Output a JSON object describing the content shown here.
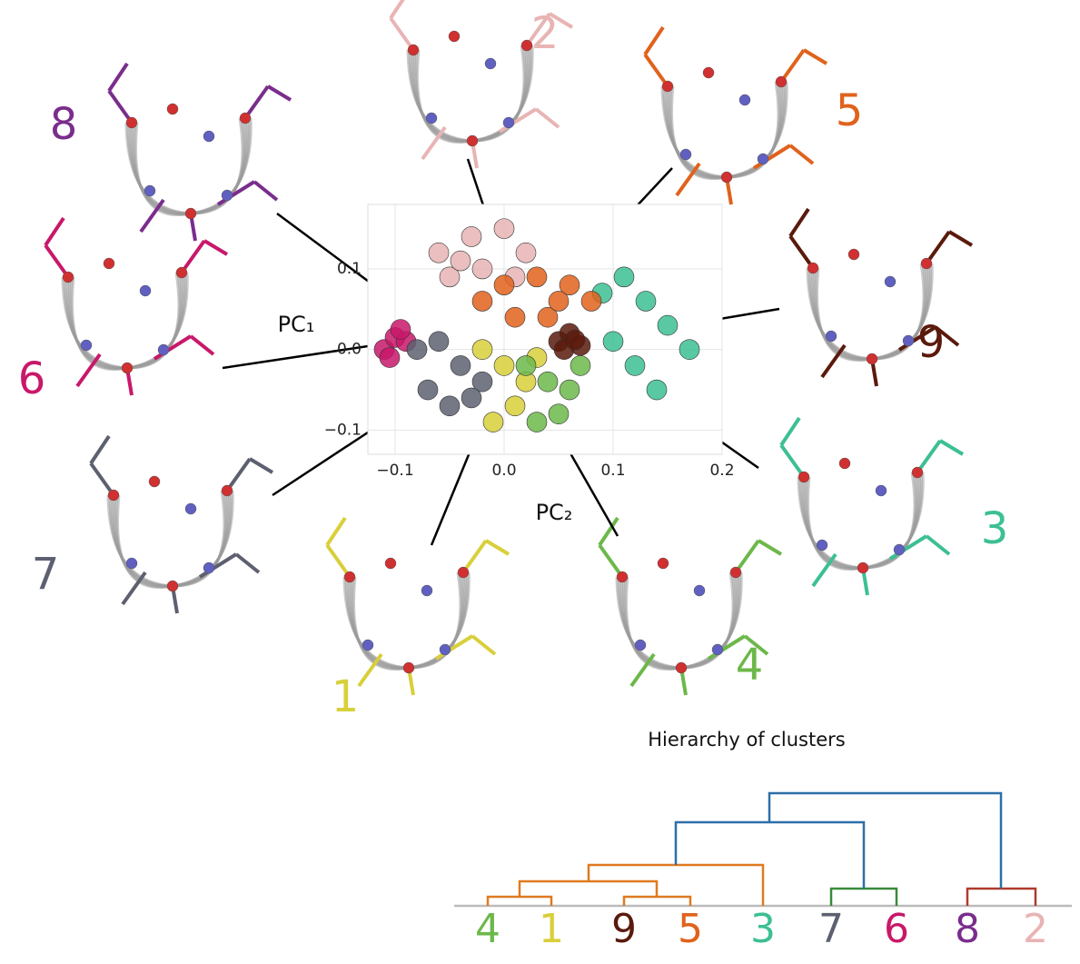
{
  "chart_data": {
    "type": "scatter",
    "xlabel": "PC₂",
    "ylabel": "PC₁",
    "xlim": [
      -0.125,
      0.2
    ],
    "ylim": [
      -0.13,
      0.18
    ],
    "xticks": [
      {
        "value": -0.1,
        "label": "−0.1"
      },
      {
        "value": 0,
        "label": "0.0"
      },
      0.1,
      0.2
    ],
    "yticks": [
      {
        "value": -0.1,
        "label": "−0.1"
      },
      {
        "value": 0,
        "label": "0.0"
      },
      0.1
    ],
    "grid": true,
    "series": [
      {
        "name": "1",
        "color": "#d8cf3a",
        "x": [
          -0.02,
          0.0,
          0.02,
          0.01,
          -0.01,
          0.03
        ],
        "y": [
          0.0,
          -0.02,
          -0.04,
          -0.07,
          -0.09,
          -0.01
        ]
      },
      {
        "name": "2",
        "color": "#e8b4b4",
        "x": [
          -0.06,
          -0.03,
          0.0,
          0.02,
          -0.02,
          -0.05,
          0.01,
          -0.04
        ],
        "y": [
          0.12,
          0.14,
          0.15,
          0.12,
          0.1,
          0.09,
          0.09,
          0.11
        ]
      },
      {
        "name": "3",
        "color": "#3cbf94",
        "x": [
          0.09,
          0.11,
          0.13,
          0.15,
          0.17,
          0.12,
          0.1,
          0.14
        ],
        "y": [
          0.07,
          0.09,
          0.06,
          0.03,
          0.0,
          -0.02,
          0.01,
          -0.05
        ]
      },
      {
        "name": "4",
        "color": "#6cb84a",
        "x": [
          0.02,
          0.04,
          0.06,
          0.05,
          0.03,
          0.07
        ],
        "y": [
          -0.02,
          -0.04,
          -0.05,
          -0.08,
          -0.09,
          -0.02
        ]
      },
      {
        "name": "5",
        "color": "#e0621c",
        "x": [
          -0.02,
          0.0,
          0.03,
          0.06,
          0.08,
          0.04,
          0.01,
          0.05
        ],
        "y": [
          0.06,
          0.08,
          0.09,
          0.08,
          0.06,
          0.04,
          0.04,
          0.06
        ]
      },
      {
        "name": "6",
        "color": "#c8186a",
        "x": [
          -0.11,
          -0.1,
          -0.09,
          -0.105,
          -0.095
        ],
        "y": [
          0.0,
          0.015,
          0.01,
          -0.01,
          0.025
        ]
      },
      {
        "name": "7",
        "color": "#5d6070",
        "x": [
          -0.08,
          -0.06,
          -0.04,
          -0.02,
          -0.07,
          -0.05,
          -0.03
        ],
        "y": [
          0.0,
          0.01,
          -0.02,
          -0.04,
          -0.05,
          -0.07,
          -0.06
        ]
      },
      {
        "name": "8",
        "color": "#7a2d8c",
        "x": [],
        "y": []
      },
      {
        "name": "9",
        "color": "#5a1a0c",
        "x": [
          0.05,
          0.06,
          0.07,
          0.055,
          0.065
        ],
        "y": [
          0.01,
          0.02,
          0.005,
          0.0,
          0.012
        ]
      }
    ]
  },
  "dendrogram": {
    "title": "Hierarchy of clusters",
    "leaves": [
      "4",
      "1",
      "9",
      "5",
      "3",
      "7",
      "6",
      "8",
      "2"
    ]
  }
}
